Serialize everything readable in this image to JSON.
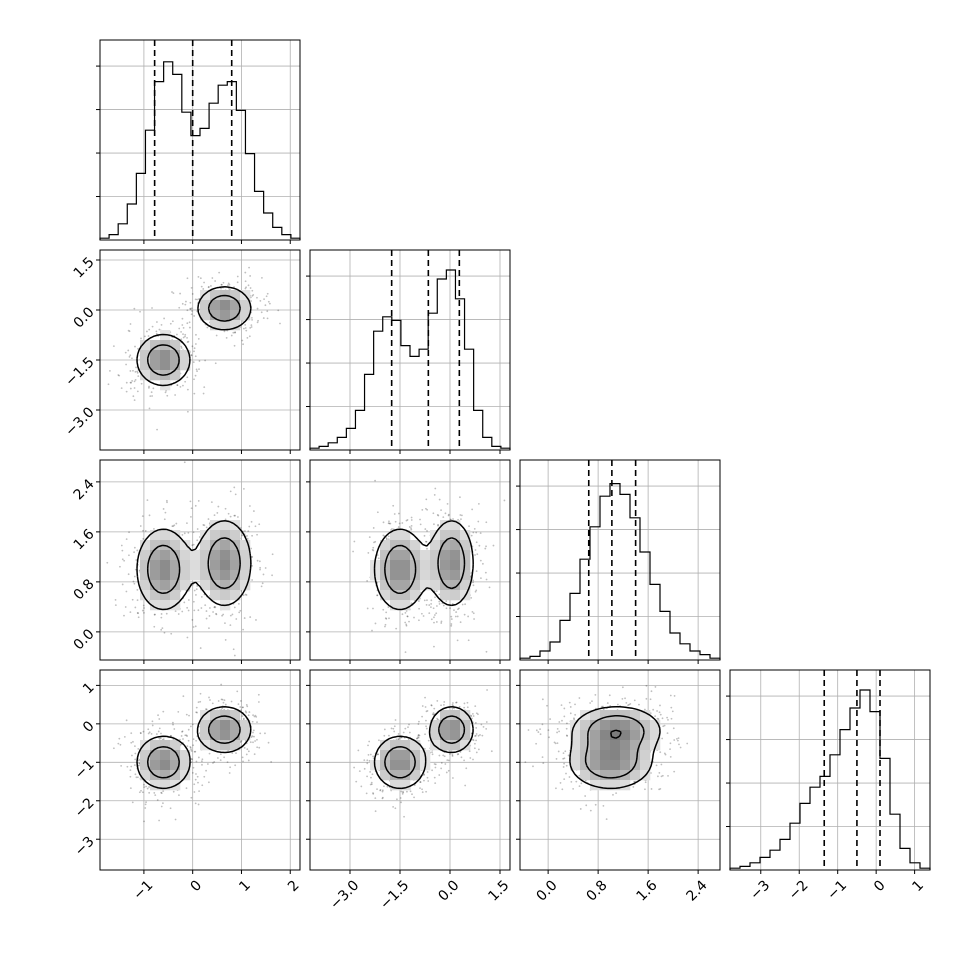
{
  "chart_data": {
    "type": "corner",
    "grid": true,
    "dims": [
      {
        "range": [
          -1.9,
          2.2
        ],
        "ticks": [
          -1,
          0,
          1,
          2
        ],
        "tick_labels": [
          "−1",
          "0",
          "1",
          "2"
        ],
        "quantiles": [
          -0.78,
          0.0,
          0.8
        ],
        "hist": [
          0.01,
          0.03,
          0.09,
          0.2,
          0.37,
          0.61,
          0.88,
          0.99,
          0.92,
          0.71,
          0.58,
          0.62,
          0.76,
          0.86,
          0.88,
          0.72,
          0.48,
          0.27,
          0.15,
          0.07,
          0.03,
          0.01
        ]
      },
      {
        "range": [
          -4.2,
          1.8
        ],
        "ticks": [
          -3.0,
          -1.5,
          0.0,
          1.5
        ],
        "tick_labels": [
          "−3.0",
          "−1.5",
          "0.0",
          "1.5"
        ],
        "quantiles": [
          -1.75,
          -0.65,
          0.28
        ],
        "hist": [
          0.01,
          0.02,
          0.04,
          0.07,
          0.12,
          0.22,
          0.42,
          0.66,
          0.74,
          0.72,
          0.58,
          0.52,
          0.56,
          0.76,
          0.95,
          1.0,
          0.84,
          0.56,
          0.22,
          0.07,
          0.02,
          0.01
        ]
      },
      {
        "range": [
          -0.45,
          2.75
        ],
        "ticks": [
          0.0,
          0.8,
          1.6,
          2.4
        ],
        "tick_labels": [
          "0.0",
          "0.8",
          "1.6",
          "2.4"
        ],
        "quantiles": [
          0.65,
          1.02,
          1.4
        ],
        "hist": [
          0.01,
          0.02,
          0.05,
          0.1,
          0.22,
          0.37,
          0.56,
          0.74,
          0.91,
          0.98,
          0.92,
          0.79,
          0.6,
          0.42,
          0.27,
          0.15,
          0.09,
          0.05,
          0.03,
          0.01
        ]
      },
      {
        "range": [
          -3.8,
          1.4
        ],
        "ticks": [
          -3,
          -2,
          -1,
          0,
          1
        ],
        "tick_labels": [
          "−3",
          "−2",
          "−1",
          "0",
          "1"
        ],
        "quantiles": [
          -1.35,
          -0.5,
          0.1
        ],
        "hist": [
          0.01,
          0.02,
          0.04,
          0.07,
          0.11,
          0.17,
          0.26,
          0.37,
          0.46,
          0.52,
          0.64,
          0.78,
          0.9,
          1.0,
          0.88,
          0.62,
          0.31,
          0.12,
          0.04,
          0.01
        ]
      }
    ],
    "y_tick_dims": [
      1,
      2,
      3
    ],
    "y_tick_labels": {
      "1": [
        "1.5",
        "0.0",
        "−1.5",
        "−3.0"
      ],
      "2": [
        "2.4",
        "1.6",
        "0.8",
        "0.0"
      ],
      "3": [
        "1",
        "0",
        "−1",
        "−2",
        "−3"
      ]
    },
    "mixture": {
      "components": [
        {
          "weight": 0.5,
          "mean": [
            -0.6,
            -1.5,
            1.0,
            -1.0
          ],
          "sd": [
            0.32,
            0.45,
            0.38,
            0.4
          ]
        },
        {
          "weight": 0.5,
          "mean": [
            0.65,
            0.05,
            1.1,
            -0.15
          ],
          "sd": [
            0.32,
            0.38,
            0.4,
            0.35
          ]
        }
      ]
    },
    "contour_levels": [
      0.12,
      0.3,
      0.55,
      0.8
    ]
  }
}
